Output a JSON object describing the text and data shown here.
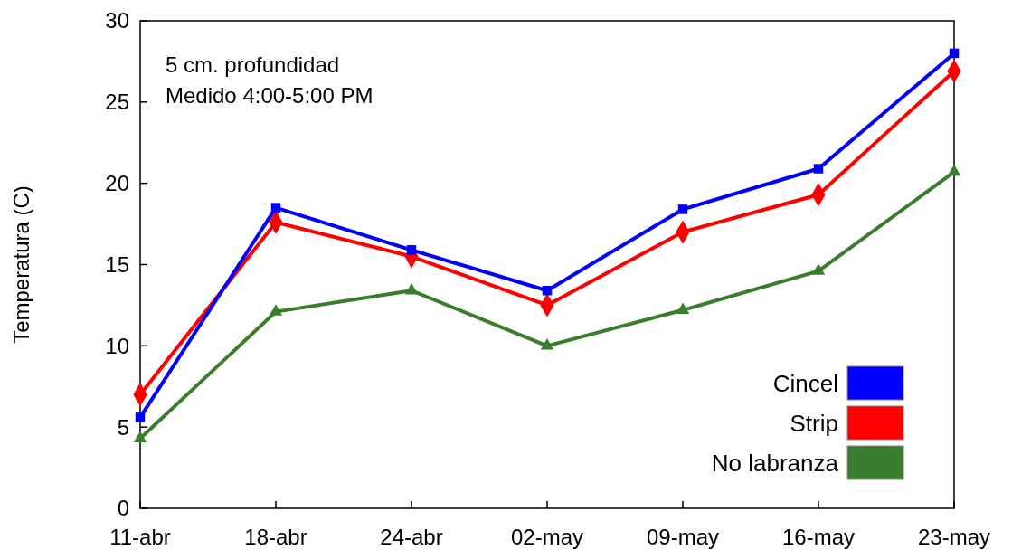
{
  "chart_data": {
    "type": "line",
    "ylabel": "Temperatura (C)",
    "annotations": [
      "5 cm. profundidad",
      "Medido 4:00-5:00 PM"
    ],
    "categories": [
      "11-abr",
      "18-abr",
      "24-abr",
      "02-may",
      "09-may",
      "16-may",
      "23-may"
    ],
    "ylim": [
      0,
      30
    ],
    "yticks": [
      0,
      5,
      10,
      15,
      20,
      25,
      30
    ],
    "grid": false,
    "legend": "bottom right",
    "line_style": "solid",
    "series": [
      {
        "name": "Cincel",
        "color": "#0000ff",
        "marker": "square",
        "values": [
          5.6,
          18.5,
          15.9,
          13.4,
          18.4,
          20.9,
          28.0
        ]
      },
      {
        "name": "Strip",
        "color": "#ff0000",
        "marker": "diamond",
        "values": [
          7.0,
          17.6,
          15.5,
          12.5,
          17.0,
          19.3,
          26.9
        ]
      },
      {
        "name": "No labranza",
        "color": "#3b7d2e",
        "marker": "triangle",
        "values": [
          4.3,
          12.1,
          13.4,
          10.0,
          12.2,
          14.6,
          20.7
        ]
      }
    ]
  }
}
